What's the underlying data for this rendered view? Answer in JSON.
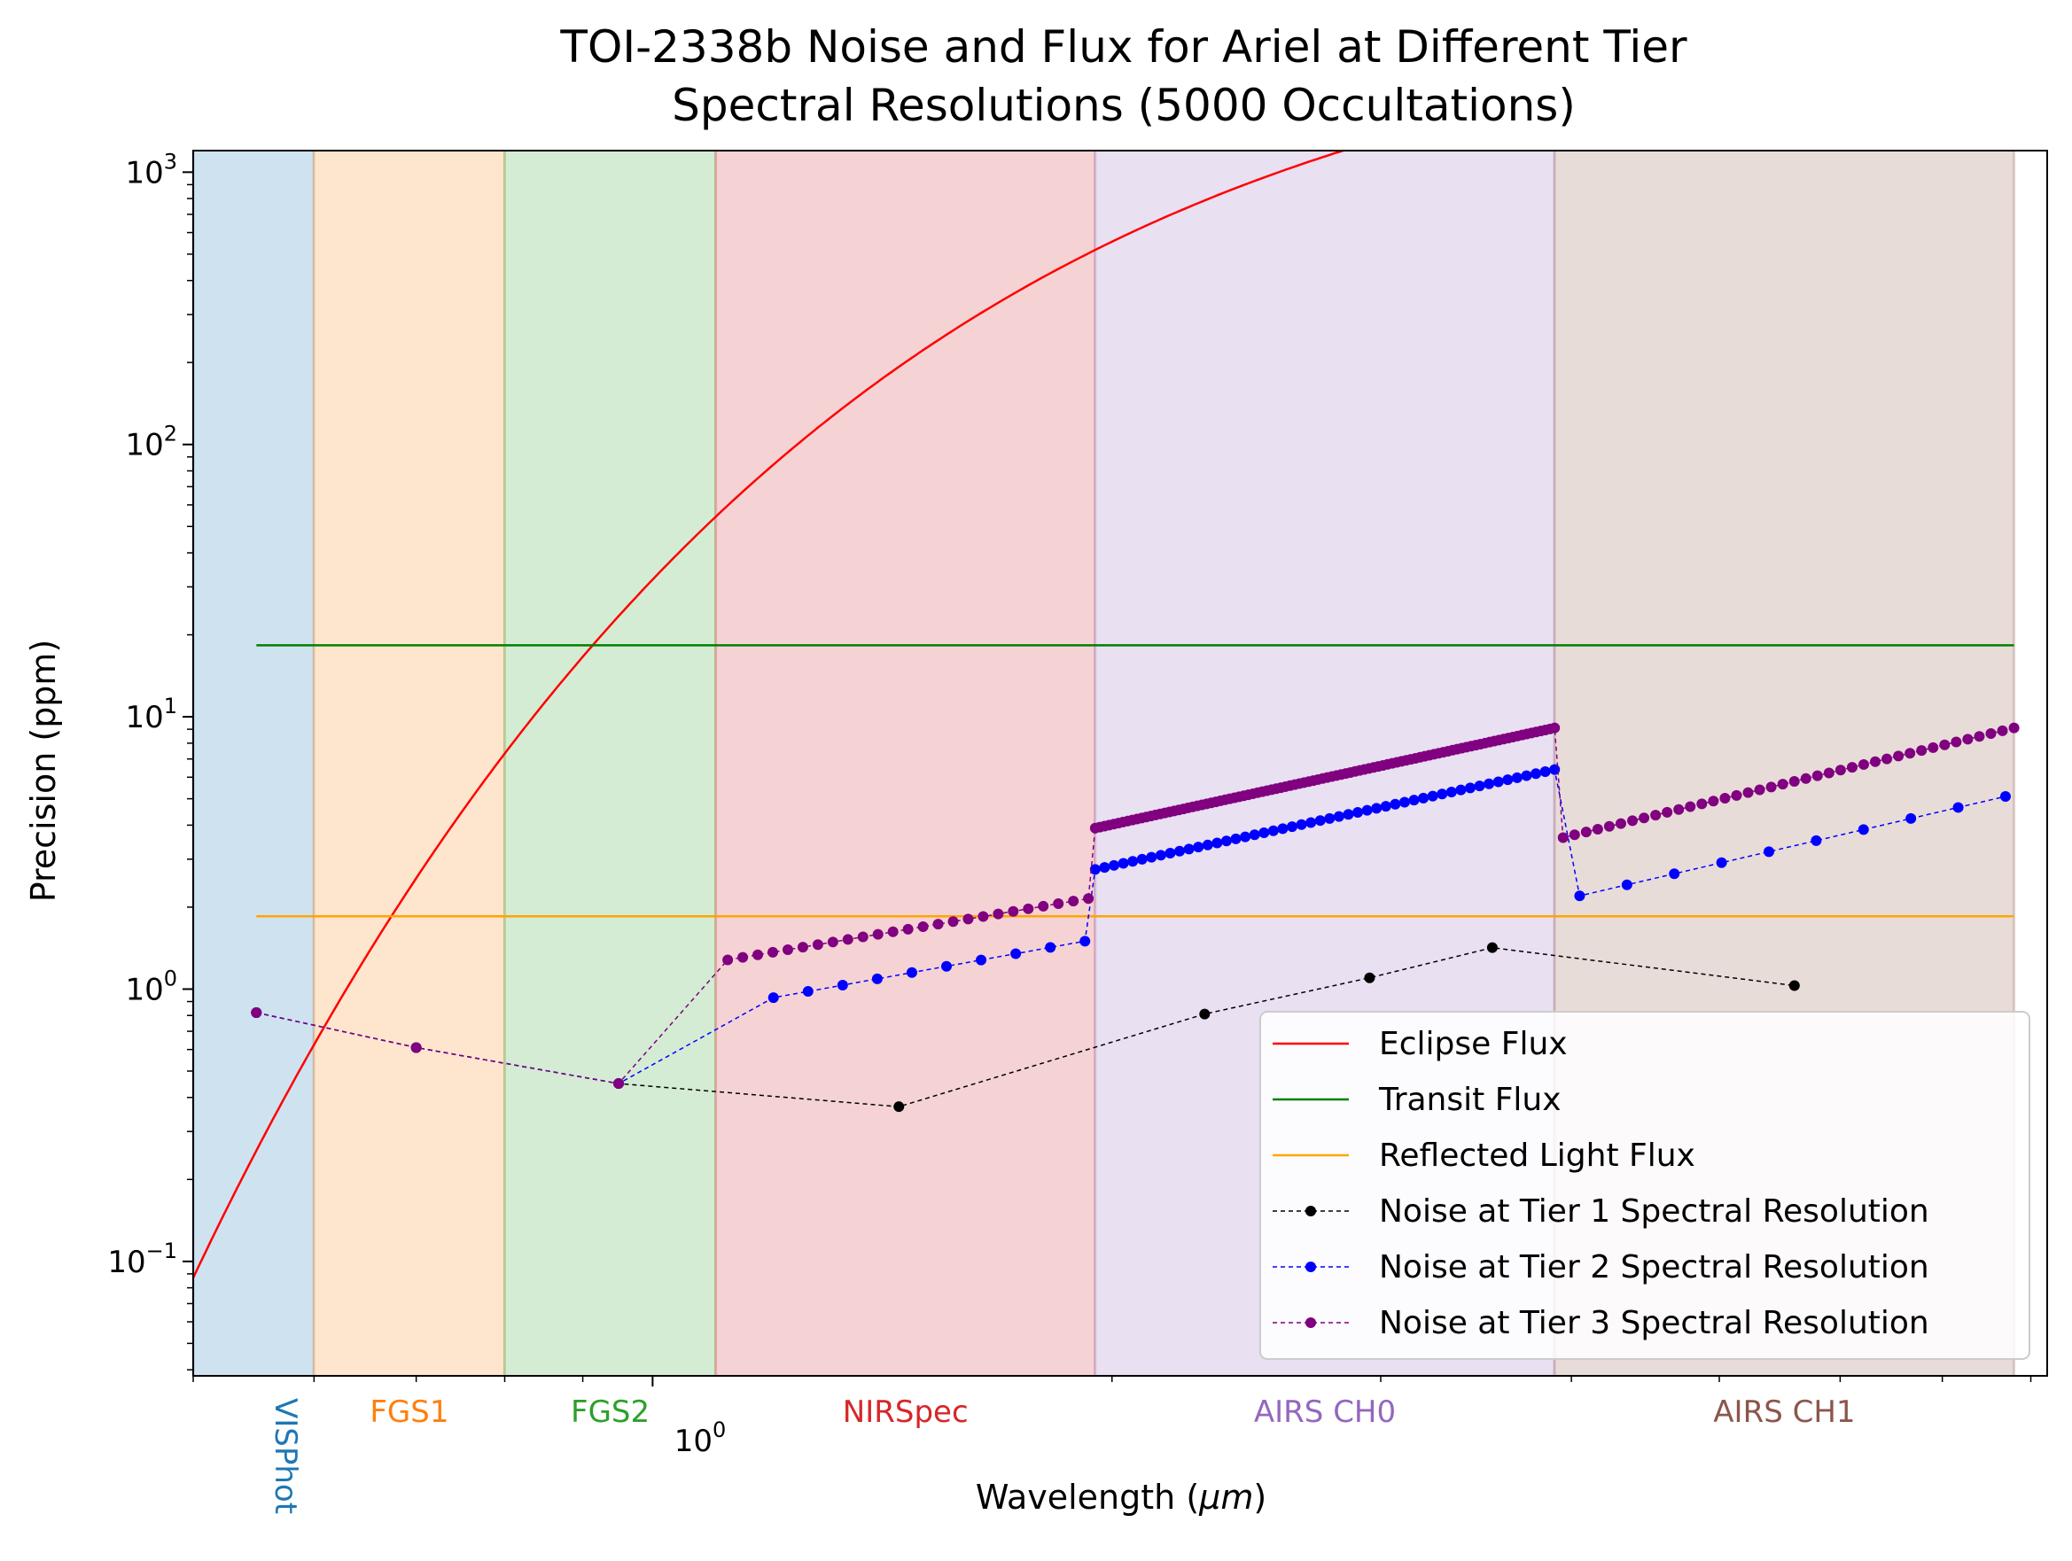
{
  "chart_data": {
    "type": "line",
    "title": [
      "TOI-2338b Noise and Flux for Ariel at Different Tier",
      "Spectral Resolutions (5000 Occultations)"
    ],
    "xlabel": "Wavelength (",
    "xlabel_mu": "μm",
    "xlabel_end": ")",
    "ylabel": "Precision (ppm)",
    "xscale": "log",
    "yscale": "log",
    "xlim": [
      0.5,
      8.2
    ],
    "ylim": [
      0.038,
      1200
    ],
    "x_tick_label": "10",
    "x_tick_label_exp": "0",
    "y_ticks": [
      {
        "value": 1000,
        "base": "10",
        "exp": "3"
      },
      {
        "value": 100,
        "base": "10",
        "exp": "2"
      },
      {
        "value": 10,
        "base": "10",
        "exp": "1"
      },
      {
        "value": 1,
        "base": "10",
        "exp": "0"
      },
      {
        "value": 0.1,
        "base": "10",
        "exp": "−1"
      }
    ],
    "bands": [
      {
        "name": "VISPhot",
        "from": 0.5,
        "to": 0.6,
        "fill": "#cfe2f0",
        "label_color": "#1f77b4",
        "rotated": true
      },
      {
        "name": "FGS1",
        "from": 0.6,
        "to": 0.8,
        "fill": "#fee5cd",
        "label_color": "#ff7f0e",
        "rotated": false
      },
      {
        "name": "FGS2",
        "from": 0.8,
        "to": 1.1,
        "fill": "#d4ecd4",
        "label_color": "#2ca02c",
        "rotated": false
      },
      {
        "name": "NIRSpec",
        "from": 1.1,
        "to": 1.95,
        "fill": "#f5d3d4",
        "label_color": "#d62728",
        "rotated": false
      },
      {
        "name": "AIRS CH0",
        "from": 1.95,
        "to": 3.9,
        "fill": "#e9e0f1",
        "label_color": "#9467bd",
        "rotated": false
      },
      {
        "name": "AIRS CH1",
        "from": 3.9,
        "to": 7.8,
        "fill": "#e8dcd9",
        "label_color": "#8c564b",
        "rotated": false
      }
    ],
    "series": [
      {
        "name": "Eclipse Flux",
        "color": "#ff0000",
        "style": "solid",
        "kind": "eclipse",
        "x_from": 0.5,
        "x_to": 7.8,
        "Tp": 1400,
        "Ts": 3300,
        "scale": 12000
      },
      {
        "name": "Transit Flux",
        "color": "#008000",
        "style": "solid",
        "x": [
          0.55,
          7.8
        ],
        "y": [
          18.3,
          18.3
        ]
      },
      {
        "name": "Reflected Light Flux",
        "color": "#ffa500",
        "style": "solid",
        "x": [
          0.55,
          7.8
        ],
        "y": [
          1.85,
          1.85
        ]
      },
      {
        "name": "Noise at Tier 1 Spectral Resolution",
        "color": "#000000",
        "style": "dashed",
        "kind": "points",
        "x": [
          0.55,
          0.7,
          0.95,
          1.45,
          2.3,
          2.95,
          3.55,
          5.6
        ],
        "y": [
          0.82,
          0.61,
          0.45,
          0.37,
          0.81,
          1.1,
          1.42,
          1.03
        ]
      },
      {
        "name": "Noise at Tier 2 Spectral Resolution",
        "color": "#0000ff",
        "style": "dashed",
        "kind": "segments",
        "pre": {
          "x": [
            0.55,
            0.7,
            0.95
          ],
          "y": [
            0.82,
            0.61,
            0.45
          ]
        },
        "segments": [
          {
            "x0": 1.2,
            "x1": 1.92,
            "y0": 0.93,
            "y1": 1.5,
            "n": 10
          },
          {
            "x0": 1.95,
            "x1": 3.9,
            "y0": 2.75,
            "y1": 6.4,
            "n": 50
          },
          {
            "x0": 4.05,
            "x1": 7.7,
            "y0": 2.2,
            "y1": 5.1,
            "n": 10
          }
        ]
      },
      {
        "name": "Noise at Tier 3 Spectral Resolution",
        "color": "#800080",
        "style": "dashed",
        "kind": "segments",
        "pre": {
          "x": [
            0.55,
            0.7,
            0.95
          ],
          "y": [
            0.82,
            0.61,
            0.45
          ]
        },
        "segments": [
          {
            "x0": 1.12,
            "x1": 1.93,
            "y0": 1.28,
            "y1": 2.15,
            "n": 25
          },
          {
            "x0": 1.95,
            "x1": 3.9,
            "y0": 3.9,
            "y1": 9.1,
            "n": 100
          },
          {
            "x0": 3.95,
            "x1": 7.8,
            "y0": 3.6,
            "y1": 9.1,
            "n": 40
          }
        ]
      }
    ],
    "legend_position": "lower-right",
    "grid": false
  }
}
